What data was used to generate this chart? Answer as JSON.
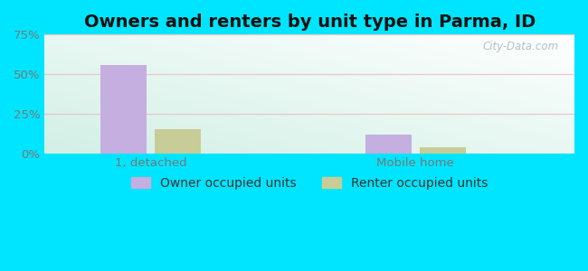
{
  "title": "Owners and renters by unit type in Parma, ID",
  "categories": [
    "1, detached",
    "Mobile home"
  ],
  "owner_values": [
    55.5,
    12.0
  ],
  "renter_values": [
    15.0,
    4.0
  ],
  "owner_color": "#c5aee0",
  "renter_color": "#c8cc96",
  "ylim": [
    0,
    75
  ],
  "yticks": [
    0,
    25,
    50,
    75
  ],
  "ytick_labels": [
    "0%",
    "25%",
    "50%",
    "75%"
  ],
  "bar_width": 0.35,
  "group_positions": [
    1.0,
    3.0
  ],
  "outer_bg": "#00e5ff",
  "watermark": "City-Data.com",
  "legend_owner": "Owner occupied units",
  "legend_renter": "Renter occupied units",
  "title_fontsize": 14,
  "tick_fontsize": 9.5,
  "legend_fontsize": 10,
  "grid_color": "#e8c8c8",
  "tick_color": "#777777"
}
